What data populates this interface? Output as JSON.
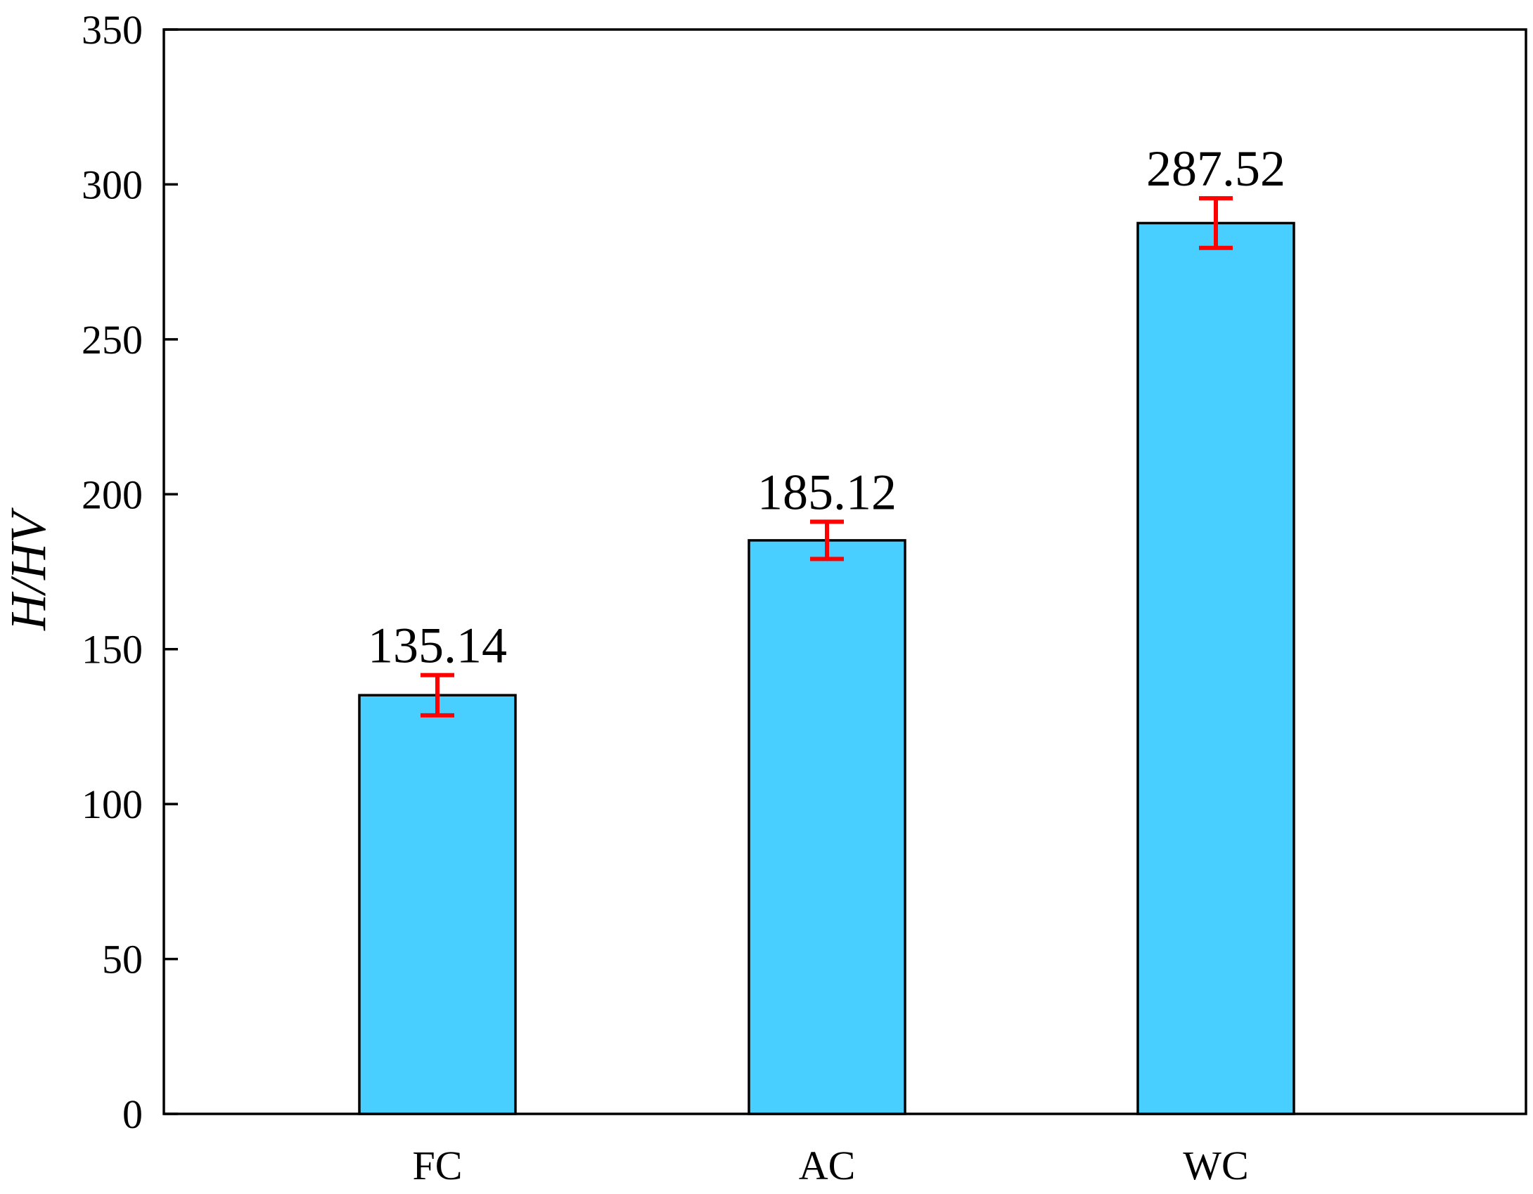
{
  "chart_data": {
    "type": "bar",
    "categories": [
      "FC",
      "AC",
      "WC"
    ],
    "values": [
      135.14,
      185.12,
      287.52
    ],
    "errors": [
      6.5,
      6.0,
      8.0
    ],
    "data_labels": [
      "135.14",
      "185.12",
      "287.52"
    ],
    "title": "",
    "xlabel": "",
    "ylabel": "H/HV",
    "ylim": [
      0,
      350
    ],
    "yticks": [
      0,
      50,
      100,
      150,
      200,
      250,
      300,
      350
    ],
    "ytick_labels": [
      "0",
      "50",
      "100",
      "150",
      "200",
      "250",
      "300",
      "350"
    ],
    "grid": false,
    "legend": "none",
    "colors": {
      "bar_fill": "#48cfff",
      "bar_stroke": "#000000",
      "error_bar": "#ff0000",
      "axis": "#000000"
    }
  }
}
